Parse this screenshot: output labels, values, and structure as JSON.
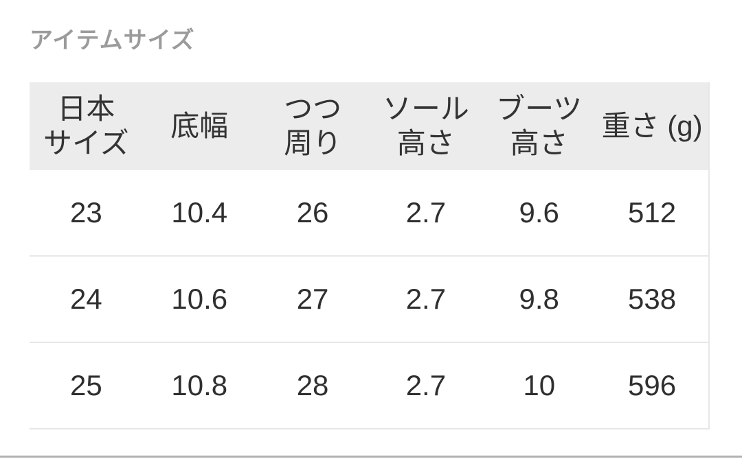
{
  "title": "アイテムサイズ",
  "size_table": {
    "columns": [
      "日本\nサイズ",
      "底幅",
      "つつ\n周り",
      "ソール\n高さ",
      "ブーツ\n高さ",
      "重さ (g)"
    ],
    "rows": [
      [
        "23",
        "10.4",
        "26",
        "2.7",
        "9.6",
        "512"
      ],
      [
        "24",
        "10.6",
        "27",
        "2.7",
        "9.8",
        "538"
      ],
      [
        "25",
        "10.8",
        "28",
        "2.7",
        "10",
        "596"
      ]
    ]
  },
  "colors": {
    "title_text": "#9b9b9b",
    "header_bg": "#ececec",
    "header_text": "#333333",
    "body_text": "#2f2f2f",
    "divider": "#e7e7e7",
    "bottom_bar": "#b1b1b1"
  }
}
